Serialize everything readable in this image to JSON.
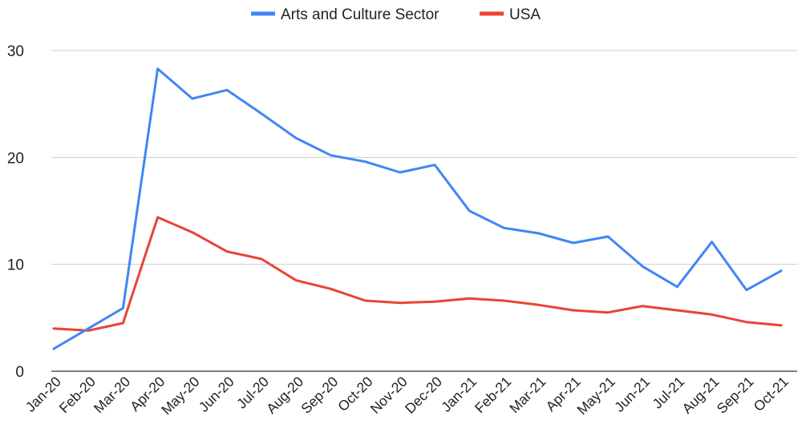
{
  "chart_data": {
    "type": "line",
    "title": "",
    "xlabel": "",
    "ylabel": "",
    "ylim": [
      0,
      30
    ],
    "yticks": [
      0,
      10,
      20,
      30
    ],
    "grid": true,
    "legend_position": "top-center",
    "categories": [
      "Jan-20",
      "Feb-20",
      "Mar-20",
      "Apr-20",
      "May-20",
      "Jun-20",
      "Jul-20",
      "Aug-20",
      "Sep-20",
      "Oct-20",
      "Nov-20",
      "Dec-20",
      "Jan-21",
      "Feb-21",
      "Mar-21",
      "Apr-21",
      "May-21",
      "Jun-21",
      "Jul-21",
      "Aug-21",
      "Sep-21",
      "Oct-21"
    ],
    "series": [
      {
        "name": "Arts and Culture Sector",
        "color": "#4285f4",
        "values": [
          2.1,
          4.0,
          5.9,
          28.3,
          25.5,
          26.3,
          24.1,
          21.8,
          20.2,
          19.6,
          18.6,
          19.3,
          15.0,
          13.4,
          12.9,
          12.0,
          12.6,
          9.8,
          7.9,
          12.1,
          7.6,
          9.4
        ]
      },
      {
        "name": "USA",
        "color": "#ea4335",
        "values": [
          4.0,
          3.8,
          4.5,
          14.4,
          13.0,
          11.2,
          10.5,
          8.5,
          7.7,
          6.6,
          6.4,
          6.5,
          6.8,
          6.6,
          6.2,
          5.7,
          5.5,
          6.1,
          5.7,
          5.3,
          4.6,
          4.3
        ]
      }
    ]
  }
}
